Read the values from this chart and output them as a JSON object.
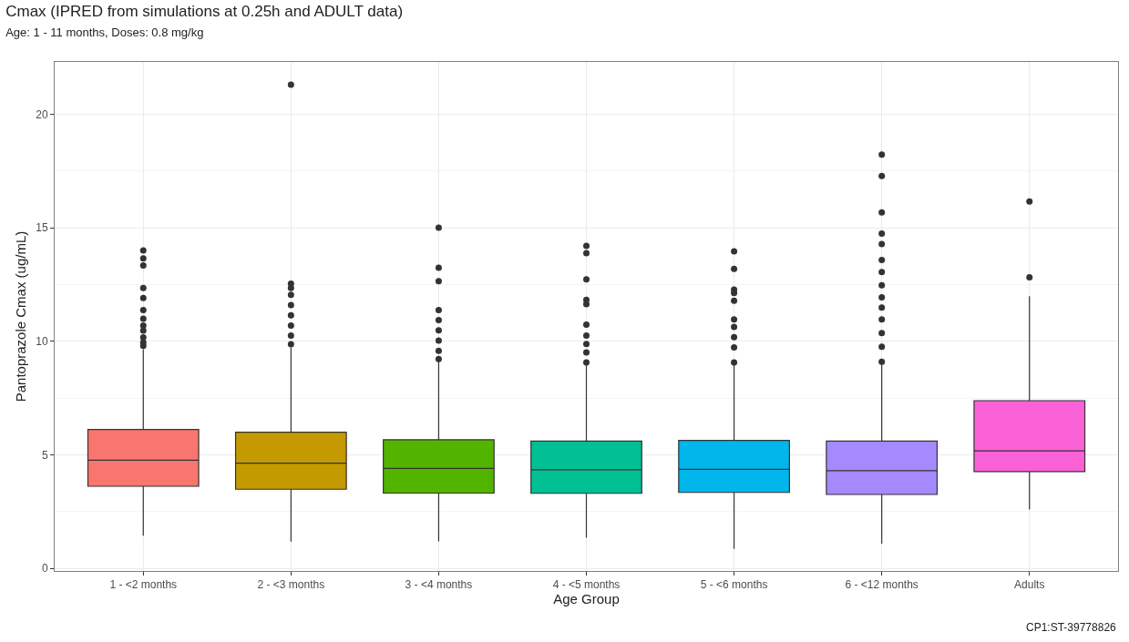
{
  "chart_data": {
    "type": "box",
    "title": "Cmax (IPRED from simulations at 0.25h and ADULT data)",
    "subtitle": "Age: 1 - 11 months, Doses: 0.8 mg/kg",
    "xlabel": "Age Group",
    "ylabel": "Pantoprazole Cmax (ug/mL)",
    "categories": [
      "1 - <2 months",
      "2 - <3 months",
      "3 - <4 months",
      "4 - <5 months",
      "5 - <6 months",
      "6 - <12 months",
      "Adults"
    ],
    "colors": [
      "#f8766d",
      "#c49a00",
      "#53b400",
      "#00c094",
      "#00b6eb",
      "#a58aff",
      "#fb61d7"
    ],
    "boxes": [
      {
        "low": 1.43,
        "q1": 3.61,
        "median": 4.76,
        "q3": 6.11,
        "high": 9.65,
        "outliers": [
          9.8,
          9.95,
          10.17,
          10.47,
          10.69,
          10.99,
          11.37,
          11.9,
          12.34,
          13.34,
          13.65,
          14.0
        ]
      },
      {
        "low": 1.17,
        "q1": 3.48,
        "median": 4.63,
        "q3": 5.99,
        "high": 9.72,
        "outliers": [
          9.87,
          10.25,
          10.69,
          11.14,
          11.59,
          12.04,
          12.34,
          12.53,
          21.3
        ]
      },
      {
        "low": 1.18,
        "q1": 3.31,
        "median": 4.4,
        "q3": 5.66,
        "high": 9.13,
        "outliers": [
          9.21,
          9.58,
          10.03,
          10.48,
          10.93,
          11.37,
          12.64,
          13.24,
          15.0
        ]
      },
      {
        "low": 1.34,
        "q1": 3.3,
        "median": 4.34,
        "q3": 5.6,
        "high": 8.96,
        "outliers": [
          9.06,
          9.51,
          9.88,
          10.25,
          10.73,
          11.63,
          11.82,
          12.72,
          13.88,
          14.2
        ]
      },
      {
        "low": 0.85,
        "q1": 3.34,
        "median": 4.36,
        "q3": 5.63,
        "high": 8.99,
        "outliers": [
          9.06,
          9.73,
          10.18,
          10.63,
          10.96,
          11.78,
          12.12,
          12.27,
          13.19,
          13.96
        ]
      },
      {
        "low": 1.08,
        "q1": 3.25,
        "median": 4.3,
        "q3": 5.6,
        "high": 8.98,
        "outliers": [
          9.09,
          9.76,
          10.36,
          10.96,
          11.48,
          11.93,
          12.46,
          13.05,
          13.58,
          14.28,
          14.74,
          15.67,
          17.28,
          18.22
        ]
      },
      {
        "low": 2.59,
        "q1": 4.26,
        "median": 5.17,
        "q3": 7.38,
        "high": 11.98,
        "outliers": [
          12.81,
          16.15
        ]
      }
    ],
    "ylim": [
      -0.12,
      22.3
    ],
    "yticks": [
      0,
      5,
      10,
      15,
      20
    ],
    "grid": true,
    "annotations": [
      "CP1:ST-39778826"
    ]
  }
}
